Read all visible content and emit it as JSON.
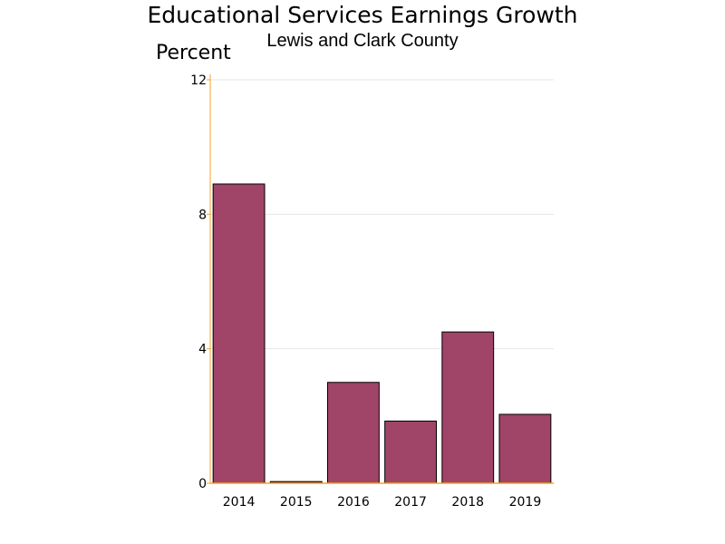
{
  "chart_data": {
    "type": "bar",
    "title": "Educational Services Earnings Growth",
    "subtitle": "Lewis and Clark County",
    "ylabel": "Percent",
    "xlabel": "",
    "categories": [
      "2014",
      "2015",
      "2016",
      "2017",
      "2018",
      "2019"
    ],
    "values": [
      8.9,
      0.05,
      3.0,
      1.85,
      4.5,
      2.05
    ],
    "ylim": [
      0,
      12
    ],
    "yticks": [
      "0",
      "4",
      "8",
      "12"
    ],
    "grid": true,
    "legend": "none",
    "colors": {
      "bar": "#a04468",
      "bar_outline": "#000000",
      "axis": "#f5a623",
      "grid": "#e6e6e6"
    }
  }
}
